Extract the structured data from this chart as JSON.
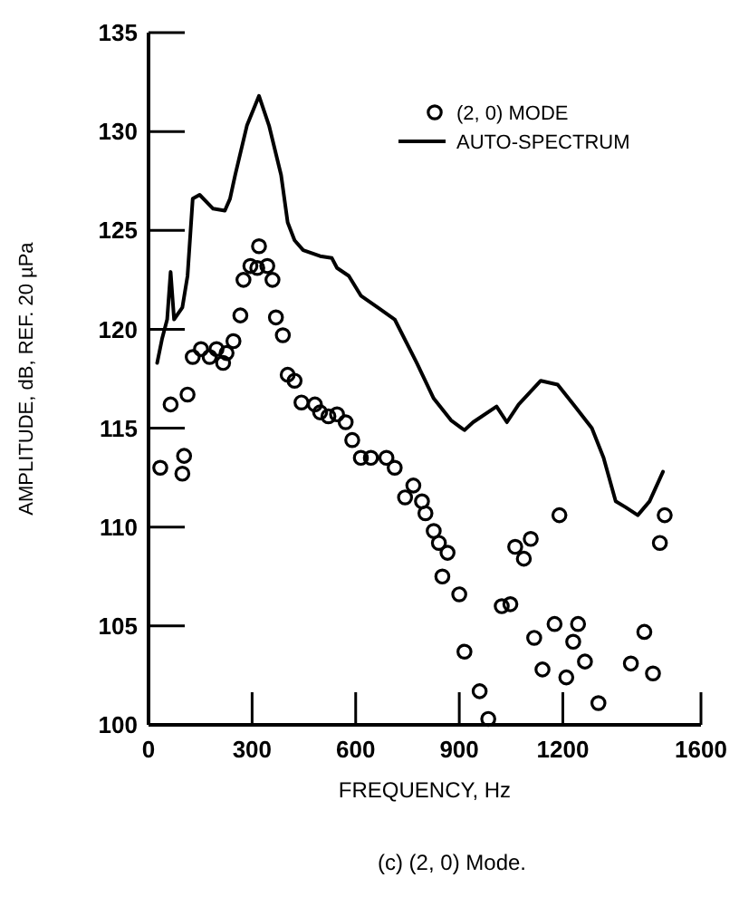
{
  "chart_data": {
    "type": "scatter",
    "xlabel": "FREQUENCY, Hz",
    "ylabel": "AMPLITUDE, dB, REF. 20 µPa",
    "annotations": [
      "(c) (2, 0) Mode."
    ],
    "xlim": [
      0,
      1600
    ],
    "xticks": [
      0,
      300,
      600,
      900,
      1200,
      1600
    ],
    "ylim": [
      100,
      135
    ],
    "yticks": [
      100,
      105,
      110,
      115,
      120,
      125,
      130,
      135
    ],
    "grid": false,
    "legend": "top right",
    "series": [
      {
        "name": "(2, 0) MODE",
        "type": "scatter",
        "marker": "circle",
        "color": "#000000",
        "x": [
          34,
          64,
          98,
          103,
          113,
          128,
          152,
          177,
          197,
          216,
          226,
          246,
          266,
          275,
          295,
          320,
          315,
          344,
          359,
          369,
          389,
          403,
          423,
          443,
          482,
          497,
          521,
          546,
          571,
          590,
          615,
          644,
          689,
          713,
          743,
          767,
          792,
          802,
          826,
          841,
          866,
          851,
          900,
          915,
          959,
          984,
          1023,
          1048,
          1062,
          1087,
          1107,
          1190,
          1117,
          1141,
          1176,
          1210,
          1230,
          1244,
          1264,
          1303,
          1397,
          1436,
          1461,
          1495,
          1481
        ],
        "values": [
          113.0,
          116.2,
          112.7,
          113.6,
          116.7,
          118.6,
          119.0,
          118.6,
          119.0,
          118.3,
          118.8,
          119.4,
          120.7,
          122.5,
          123.2,
          124.2,
          123.1,
          123.2,
          122.5,
          120.6,
          119.7,
          117.7,
          117.4,
          116.3,
          116.2,
          115.8,
          115.6,
          115.7,
          115.3,
          114.4,
          113.5,
          113.5,
          113.5,
          113.0,
          111.5,
          112.1,
          111.3,
          110.7,
          109.8,
          109.2,
          108.7,
          107.5,
          106.6,
          103.7,
          101.7,
          100.3,
          106.0,
          106.1,
          109.0,
          108.4,
          109.4,
          110.6,
          104.4,
          102.8,
          105.1,
          102.4,
          104.2,
          105.1,
          103.2,
          101.1,
          103.1,
          104.7,
          102.6,
          110.6,
          109.2
        ]
      },
      {
        "name": "AUTO-SPECTRUM",
        "type": "line",
        "marker": "none",
        "line_style": "solid",
        "color": "#000000",
        "x": [
          25,
          39,
          54,
          64,
          74,
          98,
          113,
          128,
          148,
          187,
          221,
          236,
          251,
          285,
          320,
          349,
          384,
          403,
          423,
          448,
          497,
          531,
          546,
          580,
          615,
          664,
          713,
          777,
          826,
          876,
          915,
          940,
          1008,
          1038,
          1072,
          1136,
          1185,
          1235,
          1284,
          1318,
          1353,
          1382,
          1417,
          1451,
          1490
        ],
        "values": [
          118.3,
          119.5,
          120.5,
          122.9,
          120.5,
          121.1,
          122.7,
          126.6,
          126.8,
          126.1,
          126.0,
          126.6,
          127.8,
          130.3,
          131.8,
          130.3,
          127.8,
          125.4,
          124.5,
          124.0,
          123.7,
          123.6,
          123.1,
          122.7,
          121.7,
          121.1,
          120.5,
          118.3,
          116.5,
          115.4,
          114.9,
          115.3,
          116.1,
          115.3,
          116.2,
          117.4,
          117.2,
          116.1,
          115.0,
          113.5,
          111.3,
          111.0,
          110.6,
          111.3,
          112.8
        ]
      }
    ]
  }
}
